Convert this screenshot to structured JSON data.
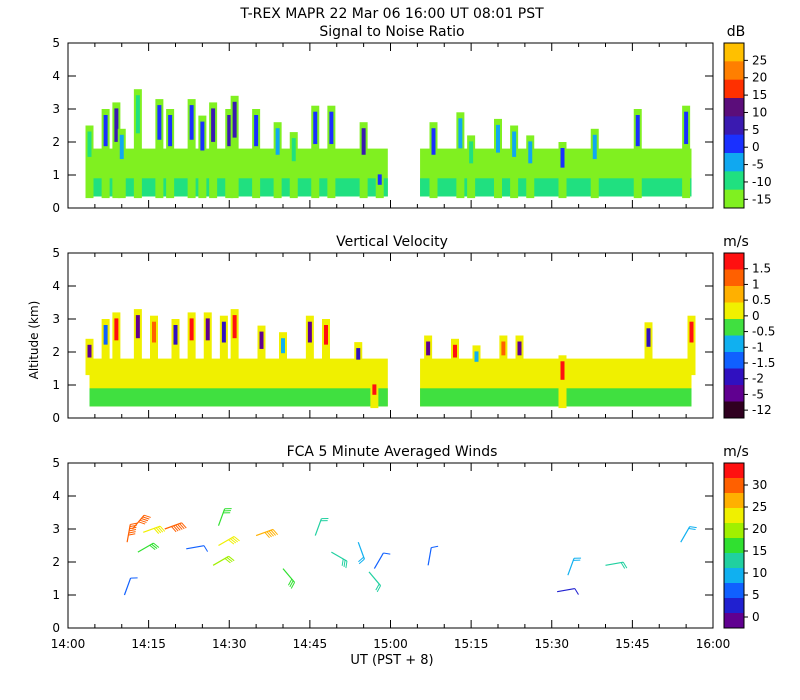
{
  "figure": {
    "title": "T-REX   MAPR 22 Mar 06   16:00 UT   08:01   PST",
    "x_axis": {
      "label": "UT  (PST + 8)",
      "ticks": [
        "14:00",
        "14:15",
        "14:30",
        "14:45",
        "15:00",
        "15:15",
        "15:30",
        "15:45",
        "16:00"
      ],
      "range_minutes": [
        0,
        120
      ]
    },
    "y_axis_label": "Altitude (km)"
  },
  "chart_data": [
    {
      "type": "heatmap",
      "title": "Signal to Noise Ratio",
      "xlabel": "UT  (PST + 8)",
      "ylabel": "Altitude (km)",
      "ylim": [
        0,
        5
      ],
      "yticks": [
        "0",
        "1",
        "2",
        "3",
        "4",
        "5"
      ],
      "colorbar": {
        "unit": "dB",
        "labels": [
          "25",
          "20",
          "15",
          "10",
          "5",
          "0",
          "-5",
          "-10",
          "-15"
        ],
        "colors": [
          "#ffc000",
          "#ff7f00",
          "#ff3000",
          "#5b0d7a",
          "#3a1ab0",
          "#1a30ff",
          "#10a8f0",
          "#20e080",
          "#80f020"
        ]
      },
      "data_gaps_minutes": [
        [
          59.5,
          65.5
        ]
      ],
      "columns": [
        {
          "t": 4,
          "bottom": 0.3,
          "top": 2.5,
          "color": "#20e080"
        },
        {
          "t": 7,
          "bottom": 0.3,
          "top": 3.0,
          "color": "#1a30ff"
        },
        {
          "t": 9,
          "bottom": 0.3,
          "top": 3.2,
          "color": "#3a1ab0"
        },
        {
          "t": 10,
          "bottom": 0.3,
          "top": 2.4,
          "color": "#10a8f0"
        },
        {
          "t": 13,
          "bottom": 0.3,
          "top": 3.6,
          "color": "#20e080"
        },
        {
          "t": 17,
          "bottom": 0.3,
          "top": 3.3,
          "color": "#1a30ff"
        },
        {
          "t": 19,
          "bottom": 0.3,
          "top": 3.0,
          "color": "#1a30ff"
        },
        {
          "t": 23,
          "bottom": 0.3,
          "top": 3.3,
          "color": "#1a30ff"
        },
        {
          "t": 25,
          "bottom": 0.3,
          "top": 2.8,
          "color": "#1a30ff"
        },
        {
          "t": 27,
          "bottom": 0.3,
          "top": 3.2,
          "color": "#3a1ab0"
        },
        {
          "t": 30,
          "bottom": 0.3,
          "top": 3.0,
          "color": "#3a1ab0"
        },
        {
          "t": 31,
          "bottom": 0.3,
          "top": 3.4,
          "color": "#3a1ab0"
        },
        {
          "t": 35,
          "bottom": 0.3,
          "top": 3.0,
          "color": "#1a30ff"
        },
        {
          "t": 39,
          "bottom": 0.3,
          "top": 2.6,
          "color": "#10a8f0"
        },
        {
          "t": 42,
          "bottom": 0.3,
          "top": 2.3,
          "color": "#20e080"
        },
        {
          "t": 46,
          "bottom": 0.3,
          "top": 3.1,
          "color": "#1a30ff"
        },
        {
          "t": 49,
          "bottom": 0.3,
          "top": 3.1,
          "color": "#1a30ff"
        },
        {
          "t": 55,
          "bottom": 0.3,
          "top": 2.6,
          "color": "#3a1ab0"
        },
        {
          "t": 58,
          "bottom": 0.3,
          "top": 1.2,
          "color": "#1a30ff"
        },
        {
          "t": 68,
          "bottom": 0.3,
          "top": 2.6,
          "color": "#1a30ff"
        },
        {
          "t": 73,
          "bottom": 0.3,
          "top": 2.9,
          "color": "#10a8f0"
        },
        {
          "t": 75,
          "bottom": 0.3,
          "top": 2.2,
          "color": "#20e080"
        },
        {
          "t": 80,
          "bottom": 0.3,
          "top": 2.7,
          "color": "#10a8f0"
        },
        {
          "t": 83,
          "bottom": 0.3,
          "top": 2.5,
          "color": "#10a8f0"
        },
        {
          "t": 86,
          "bottom": 0.3,
          "top": 2.2,
          "color": "#10a8f0"
        },
        {
          "t": 92,
          "bottom": 0.3,
          "top": 2.0,
          "color": "#1a30ff"
        },
        {
          "t": 98,
          "bottom": 0.3,
          "top": 2.4,
          "color": "#10a8f0"
        },
        {
          "t": 106,
          "bottom": 0.3,
          "top": 3.0,
          "color": "#1a30ff"
        },
        {
          "t": 115,
          "bottom": 0.3,
          "top": 3.1,
          "color": "#1a30ff"
        }
      ]
    },
    {
      "type": "heatmap",
      "title": "Vertical Velocity",
      "xlabel": "UT  (PST + 8)",
      "ylabel": "Altitude (km)",
      "ylim": [
        0,
        5
      ],
      "yticks": [
        "0",
        "1",
        "2",
        "3",
        "4",
        "5"
      ],
      "colorbar": {
        "unit": "m/s",
        "labels": [
          "1.5",
          "1",
          "0.5",
          "0",
          "-0.5",
          "-1",
          "-1.5",
          "-2",
          "-5",
          "-12"
        ],
        "colors": [
          "#ff1010",
          "#ff6000",
          "#ffb000",
          "#f0f000",
          "#40e040",
          "#10b0f0",
          "#1060ff",
          "#3010c0",
          "#600090",
          "#300020"
        ]
      },
      "data_gaps_minutes": [
        [
          59.5,
          65.5
        ]
      ],
      "columns": [
        {
          "t": 4,
          "bottom": 1.3,
          "top": 2.4,
          "color": "#600090"
        },
        {
          "t": 7,
          "bottom": 1.3,
          "top": 3.0,
          "color": "#1060ff"
        },
        {
          "t": 9,
          "bottom": 1.3,
          "top": 3.2,
          "color": "#ff1010"
        },
        {
          "t": 13,
          "bottom": 1.3,
          "top": 3.3,
          "color": "#600090"
        },
        {
          "t": 16,
          "bottom": 1.3,
          "top": 3.1,
          "color": "#ff6000"
        },
        {
          "t": 20,
          "bottom": 1.3,
          "top": 3.0,
          "color": "#3010c0"
        },
        {
          "t": 23,
          "bottom": 1.3,
          "top": 3.2,
          "color": "#ff1010"
        },
        {
          "t": 26,
          "bottom": 1.3,
          "top": 3.2,
          "color": "#600090"
        },
        {
          "t": 29,
          "bottom": 1.3,
          "top": 3.1,
          "color": "#3010c0"
        },
        {
          "t": 31,
          "bottom": 1.3,
          "top": 3.3,
          "color": "#ff1010"
        },
        {
          "t": 36,
          "bottom": 1.3,
          "top": 2.8,
          "color": "#600090"
        },
        {
          "t": 40,
          "bottom": 1.3,
          "top": 2.6,
          "color": "#10b0f0"
        },
        {
          "t": 45,
          "bottom": 1.3,
          "top": 3.1,
          "color": "#600090"
        },
        {
          "t": 48,
          "bottom": 1.3,
          "top": 3.0,
          "color": "#ff1010"
        },
        {
          "t": 54,
          "bottom": 1.3,
          "top": 2.3,
          "color": "#3010c0"
        },
        {
          "t": 57,
          "bottom": 0.3,
          "top": 1.2,
          "color": "#ff1010"
        },
        {
          "t": 67,
          "bottom": 1.3,
          "top": 2.5,
          "color": "#600090"
        },
        {
          "t": 72,
          "bottom": 1.3,
          "top": 2.4,
          "color": "#ff1010"
        },
        {
          "t": 76,
          "bottom": 1.3,
          "top": 2.2,
          "color": "#10b0f0"
        },
        {
          "t": 81,
          "bottom": 1.3,
          "top": 2.5,
          "color": "#ff6000"
        },
        {
          "t": 84,
          "bottom": 1.3,
          "top": 2.5,
          "color": "#600090"
        },
        {
          "t": 92,
          "bottom": 0.3,
          "top": 1.9,
          "color": "#ff1010"
        },
        {
          "t": 108,
          "bottom": 1.3,
          "top": 2.9,
          "color": "#3010c0"
        },
        {
          "t": 116,
          "bottom": 1.3,
          "top": 3.1,
          "color": "#ff1010"
        }
      ]
    },
    {
      "type": "scatter",
      "title": "FCA 5 Minute Averaged Winds",
      "xlabel": "UT  (PST + 8)",
      "ylabel": "Altitude (km)",
      "ylim": [
        0,
        5
      ],
      "yticks": [
        "0",
        "1",
        "2",
        "3",
        "4",
        "5"
      ],
      "colorbar": {
        "unit": "m/s",
        "labels": [
          "30",
          "25",
          "20",
          "15",
          "10",
          "5",
          "0"
        ],
        "colors": [
          "#ff1010",
          "#ff6000",
          "#ffb000",
          "#f0f000",
          "#a0f000",
          "#30e030",
          "#20d0a0",
          "#10b0f0",
          "#1060ff",
          "#2020d0",
          "#600090"
        ]
      },
      "barbs": [
        {
          "t": 10.5,
          "alt": 1.0,
          "speed": 5,
          "dir_deg": 20
        },
        {
          "t": 11,
          "alt": 2.6,
          "speed": 28,
          "dir_deg": 10
        },
        {
          "t": 12,
          "alt": 3.0,
          "speed": 27,
          "dir_deg": 40
        },
        {
          "t": 13,
          "alt": 2.3,
          "speed": 15,
          "dir_deg": 60
        },
        {
          "t": 14,
          "alt": 2.9,
          "speed": 20,
          "dir_deg": 70
        },
        {
          "t": 18,
          "alt": 3.0,
          "speed": 28,
          "dir_deg": 70
        },
        {
          "t": 22,
          "alt": 2.4,
          "speed": 6,
          "dir_deg": 80
        },
        {
          "t": 27,
          "alt": 1.9,
          "speed": 17,
          "dir_deg": 60
        },
        {
          "t": 28,
          "alt": 2.5,
          "speed": 21,
          "dir_deg": 60
        },
        {
          "t": 28,
          "alt": 3.1,
          "speed": 16,
          "dir_deg": 20
        },
        {
          "t": 35,
          "alt": 2.8,
          "speed": 25,
          "dir_deg": 70
        },
        {
          "t": 40,
          "alt": 1.8,
          "speed": 14,
          "dir_deg": 140
        },
        {
          "t": 46,
          "alt": 2.8,
          "speed": 11,
          "dir_deg": 20
        },
        {
          "t": 49,
          "alt": 2.3,
          "speed": 13,
          "dir_deg": 120
        },
        {
          "t": 54,
          "alt": 2.6,
          "speed": 10,
          "dir_deg": 160
        },
        {
          "t": 56,
          "alt": 1.7,
          "speed": 11,
          "dir_deg": 140
        },
        {
          "t": 57,
          "alt": 1.8,
          "speed": 5,
          "dir_deg": 30
        },
        {
          "t": 67,
          "alt": 1.9,
          "speed": 5,
          "dir_deg": 10
        },
        {
          "t": 91,
          "alt": 1.1,
          "speed": 3,
          "dir_deg": 80
        },
        {
          "t": 93,
          "alt": 1.6,
          "speed": 10,
          "dir_deg": 20
        },
        {
          "t": 100,
          "alt": 1.9,
          "speed": 11,
          "dir_deg": 80
        },
        {
          "t": 114,
          "alt": 2.6,
          "speed": 10,
          "dir_deg": 30
        }
      ]
    }
  ]
}
